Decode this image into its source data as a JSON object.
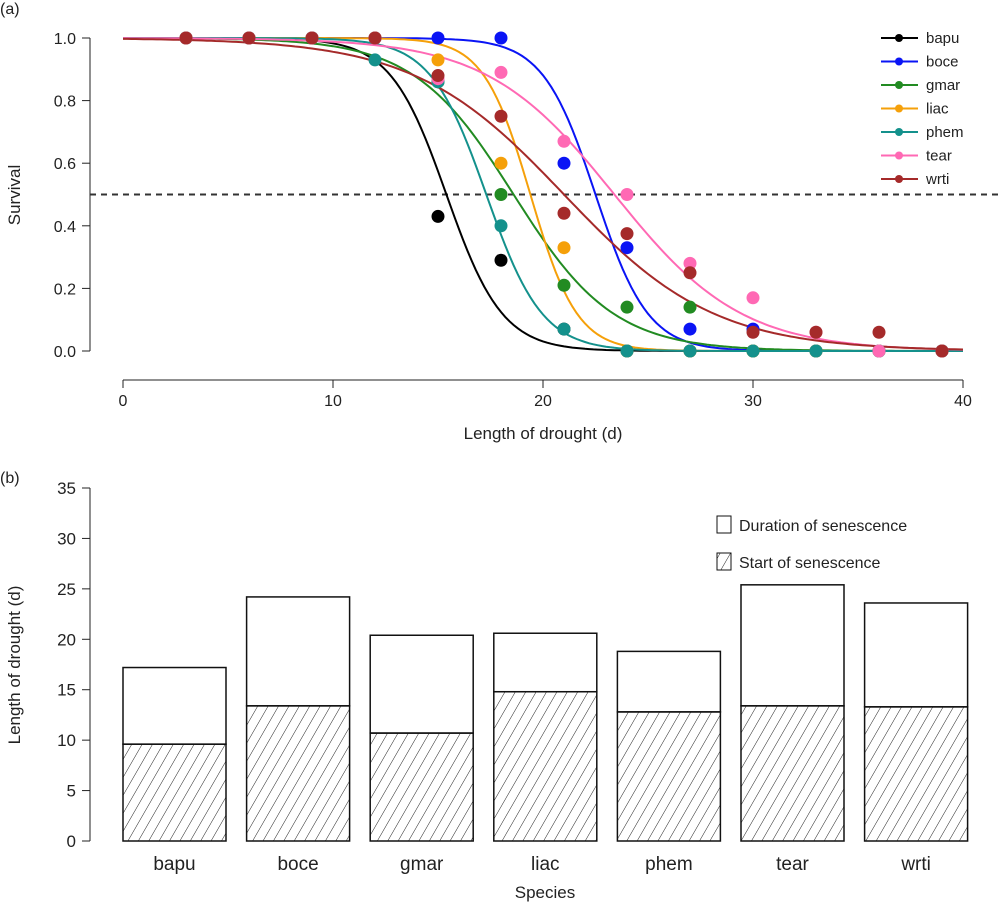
{
  "chart_data": [
    {
      "panel_label": "(a)",
      "type": "scatter",
      "xlabel": "Length of drought (d)",
      "ylabel": "Survival",
      "xlim": [
        0,
        40
      ],
      "ylim": [
        0,
        1
      ],
      "xticks": [
        "0",
        "10",
        "20",
        "30",
        "40"
      ],
      "yticks": [
        "0.0",
        "0.2",
        "0.4",
        "0.6",
        "0.8",
        "1.0"
      ],
      "reference_line": {
        "y": 0.5,
        "style": "dashed"
      },
      "legend_position": "top-right",
      "x": [
        3,
        6,
        9,
        12,
        15,
        18,
        21,
        24,
        27,
        30,
        33,
        36,
        39
      ],
      "series": [
        {
          "name": "bapu",
          "color": "#000000",
          "fit_x50": 15.4,
          "fit_slope": 0.75,
          "values": [
            1,
            1,
            1,
            1,
            0.43,
            0.29,
            0.07,
            0,
            0,
            0,
            0,
            0,
            0
          ]
        },
        {
          "name": "boce",
          "color": "#0a14f5",
          "fit_x50": 22.5,
          "fit_slope": 0.8,
          "values": [
            1,
            1,
            1,
            1,
            1,
            1,
            0.6,
            0.33,
            0.07,
            0.07,
            0,
            0,
            0
          ]
        },
        {
          "name": "gmar",
          "color": "#228b22",
          "fit_x50": 18.6,
          "fit_slope": 0.42,
          "values": [
            1,
            1,
            1,
            1,
            0.86,
            0.5,
            0.21,
            0.14,
            0.14,
            0,
            0,
            0,
            0
          ]
        },
        {
          "name": "liac",
          "color": "#f5a00a",
          "fit_x50": 19.4,
          "fit_slope": 0.9,
          "values": [
            1,
            1,
            1,
            1,
            0.93,
            0.6,
            0.33,
            0,
            0,
            0,
            0,
            0,
            0
          ]
        },
        {
          "name": "phem",
          "color": "#14918c",
          "fit_x50": 17.3,
          "fit_slope": 0.75,
          "values": [
            1,
            1,
            1,
            0.93,
            0.86,
            0.4,
            0.07,
            0,
            0,
            0,
            0,
            0,
            0
          ]
        },
        {
          "name": "tear",
          "color": "#ff69b4",
          "fit_x50": 23.4,
          "fit_slope": 0.33,
          "values": [
            1,
            1,
            1,
            1,
            0.87,
            0.89,
            0.67,
            0.5,
            0.28,
            0.17,
            0.06,
            0,
            0
          ]
        },
        {
          "name": "wrti",
          "color": "#a52a2a",
          "fit_x50": 21.0,
          "fit_slope": 0.28,
          "values": [
            1,
            1,
            1,
            1,
            0.88,
            0.75,
            0.44,
            0.375,
            0.25,
            0.06,
            0.06,
            0.06,
            0
          ]
        }
      ]
    },
    {
      "panel_label": "(b)",
      "type": "bar",
      "stacked": true,
      "xlabel": "Species",
      "ylabel": "Length of drought (d)",
      "ylim": [
        0,
        35
      ],
      "yticks": [
        "0",
        "5",
        "10",
        "15",
        "20",
        "25",
        "30",
        "35"
      ],
      "categories": [
        "bapu",
        "boce",
        "gmar",
        "liac",
        "phem",
        "tear",
        "wrti"
      ],
      "legend_position": "top-right",
      "series": [
        {
          "name": "Start of senescence",
          "pattern": "hatched",
          "values": [
            9.6,
            13.4,
            10.7,
            14.8,
            12.8,
            13.4,
            13.3
          ]
        },
        {
          "name": "Duration of senescence",
          "pattern": "open",
          "values": [
            7.6,
            10.8,
            9.7,
            5.8,
            6.0,
            12.0,
            10.3
          ]
        }
      ]
    }
  ]
}
